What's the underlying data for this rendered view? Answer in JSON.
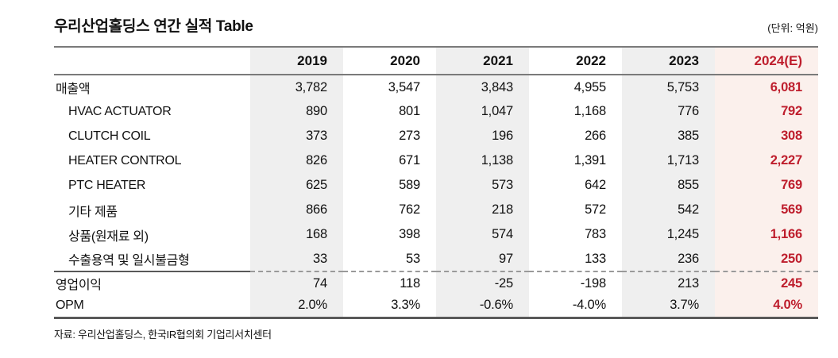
{
  "page": {
    "title": "우리산업홀딩스 연간 실적 Table",
    "unit_label": "(단위: 억원)",
    "source": "자료: 우리산업홀딩스, 한국IR협의회 기업리서치센터"
  },
  "colors": {
    "accent_red": "#be1e2d",
    "gray_column_bg": "#efefef",
    "pink_column_bg": "#fbf0ec",
    "rule_gray": "#7a7a7a",
    "rule_dark": "#595959"
  },
  "chart_data": {
    "type": "table",
    "title": "우리산업홀딩스 연간 실적 Table",
    "unit": "억원",
    "columns": [
      "2019",
      "2020",
      "2021",
      "2022",
      "2023",
      "2024(E)"
    ],
    "highlight_column": "2024(E)",
    "rows": [
      {
        "label": "매출액",
        "indent": false,
        "values": [
          "3,782",
          "3,547",
          "3,843",
          "4,955",
          "5,753",
          "6,081"
        ]
      },
      {
        "label": "HVAC ACTUATOR",
        "indent": true,
        "values": [
          "890",
          "801",
          "1,047",
          "1,168",
          "776",
          "792"
        ]
      },
      {
        "label": "CLUTCH COIL",
        "indent": true,
        "values": [
          "373",
          "273",
          "196",
          "266",
          "385",
          "308"
        ]
      },
      {
        "label": "HEATER CONTROL",
        "indent": true,
        "values": [
          "826",
          "671",
          "1,138",
          "1,391",
          "1,713",
          "2,227"
        ]
      },
      {
        "label": "PTC HEATER",
        "indent": true,
        "values": [
          "625",
          "589",
          "573",
          "642",
          "855",
          "769"
        ]
      },
      {
        "label": "기타 제품",
        "indent": true,
        "values": [
          "866",
          "762",
          "218",
          "572",
          "542",
          "569"
        ]
      },
      {
        "label": "상품(원재료 외)",
        "indent": true,
        "values": [
          "168",
          "398",
          "574",
          "783",
          "1,245",
          "1,166"
        ]
      },
      {
        "label": "수출용역 및 일시불금형",
        "indent": true,
        "values": [
          "33",
          "53",
          "97",
          "133",
          "236",
          "250"
        ]
      },
      {
        "label": "영업이익",
        "indent": false,
        "values": [
          "74",
          "118",
          "-25",
          "-198",
          "213",
          "245"
        ]
      },
      {
        "label": "OPM",
        "indent": false,
        "values": [
          "2.0%",
          "3.3%",
          "-0.6%",
          "-4.0%",
          "3.7%",
          "4.0%"
        ]
      }
    ]
  }
}
